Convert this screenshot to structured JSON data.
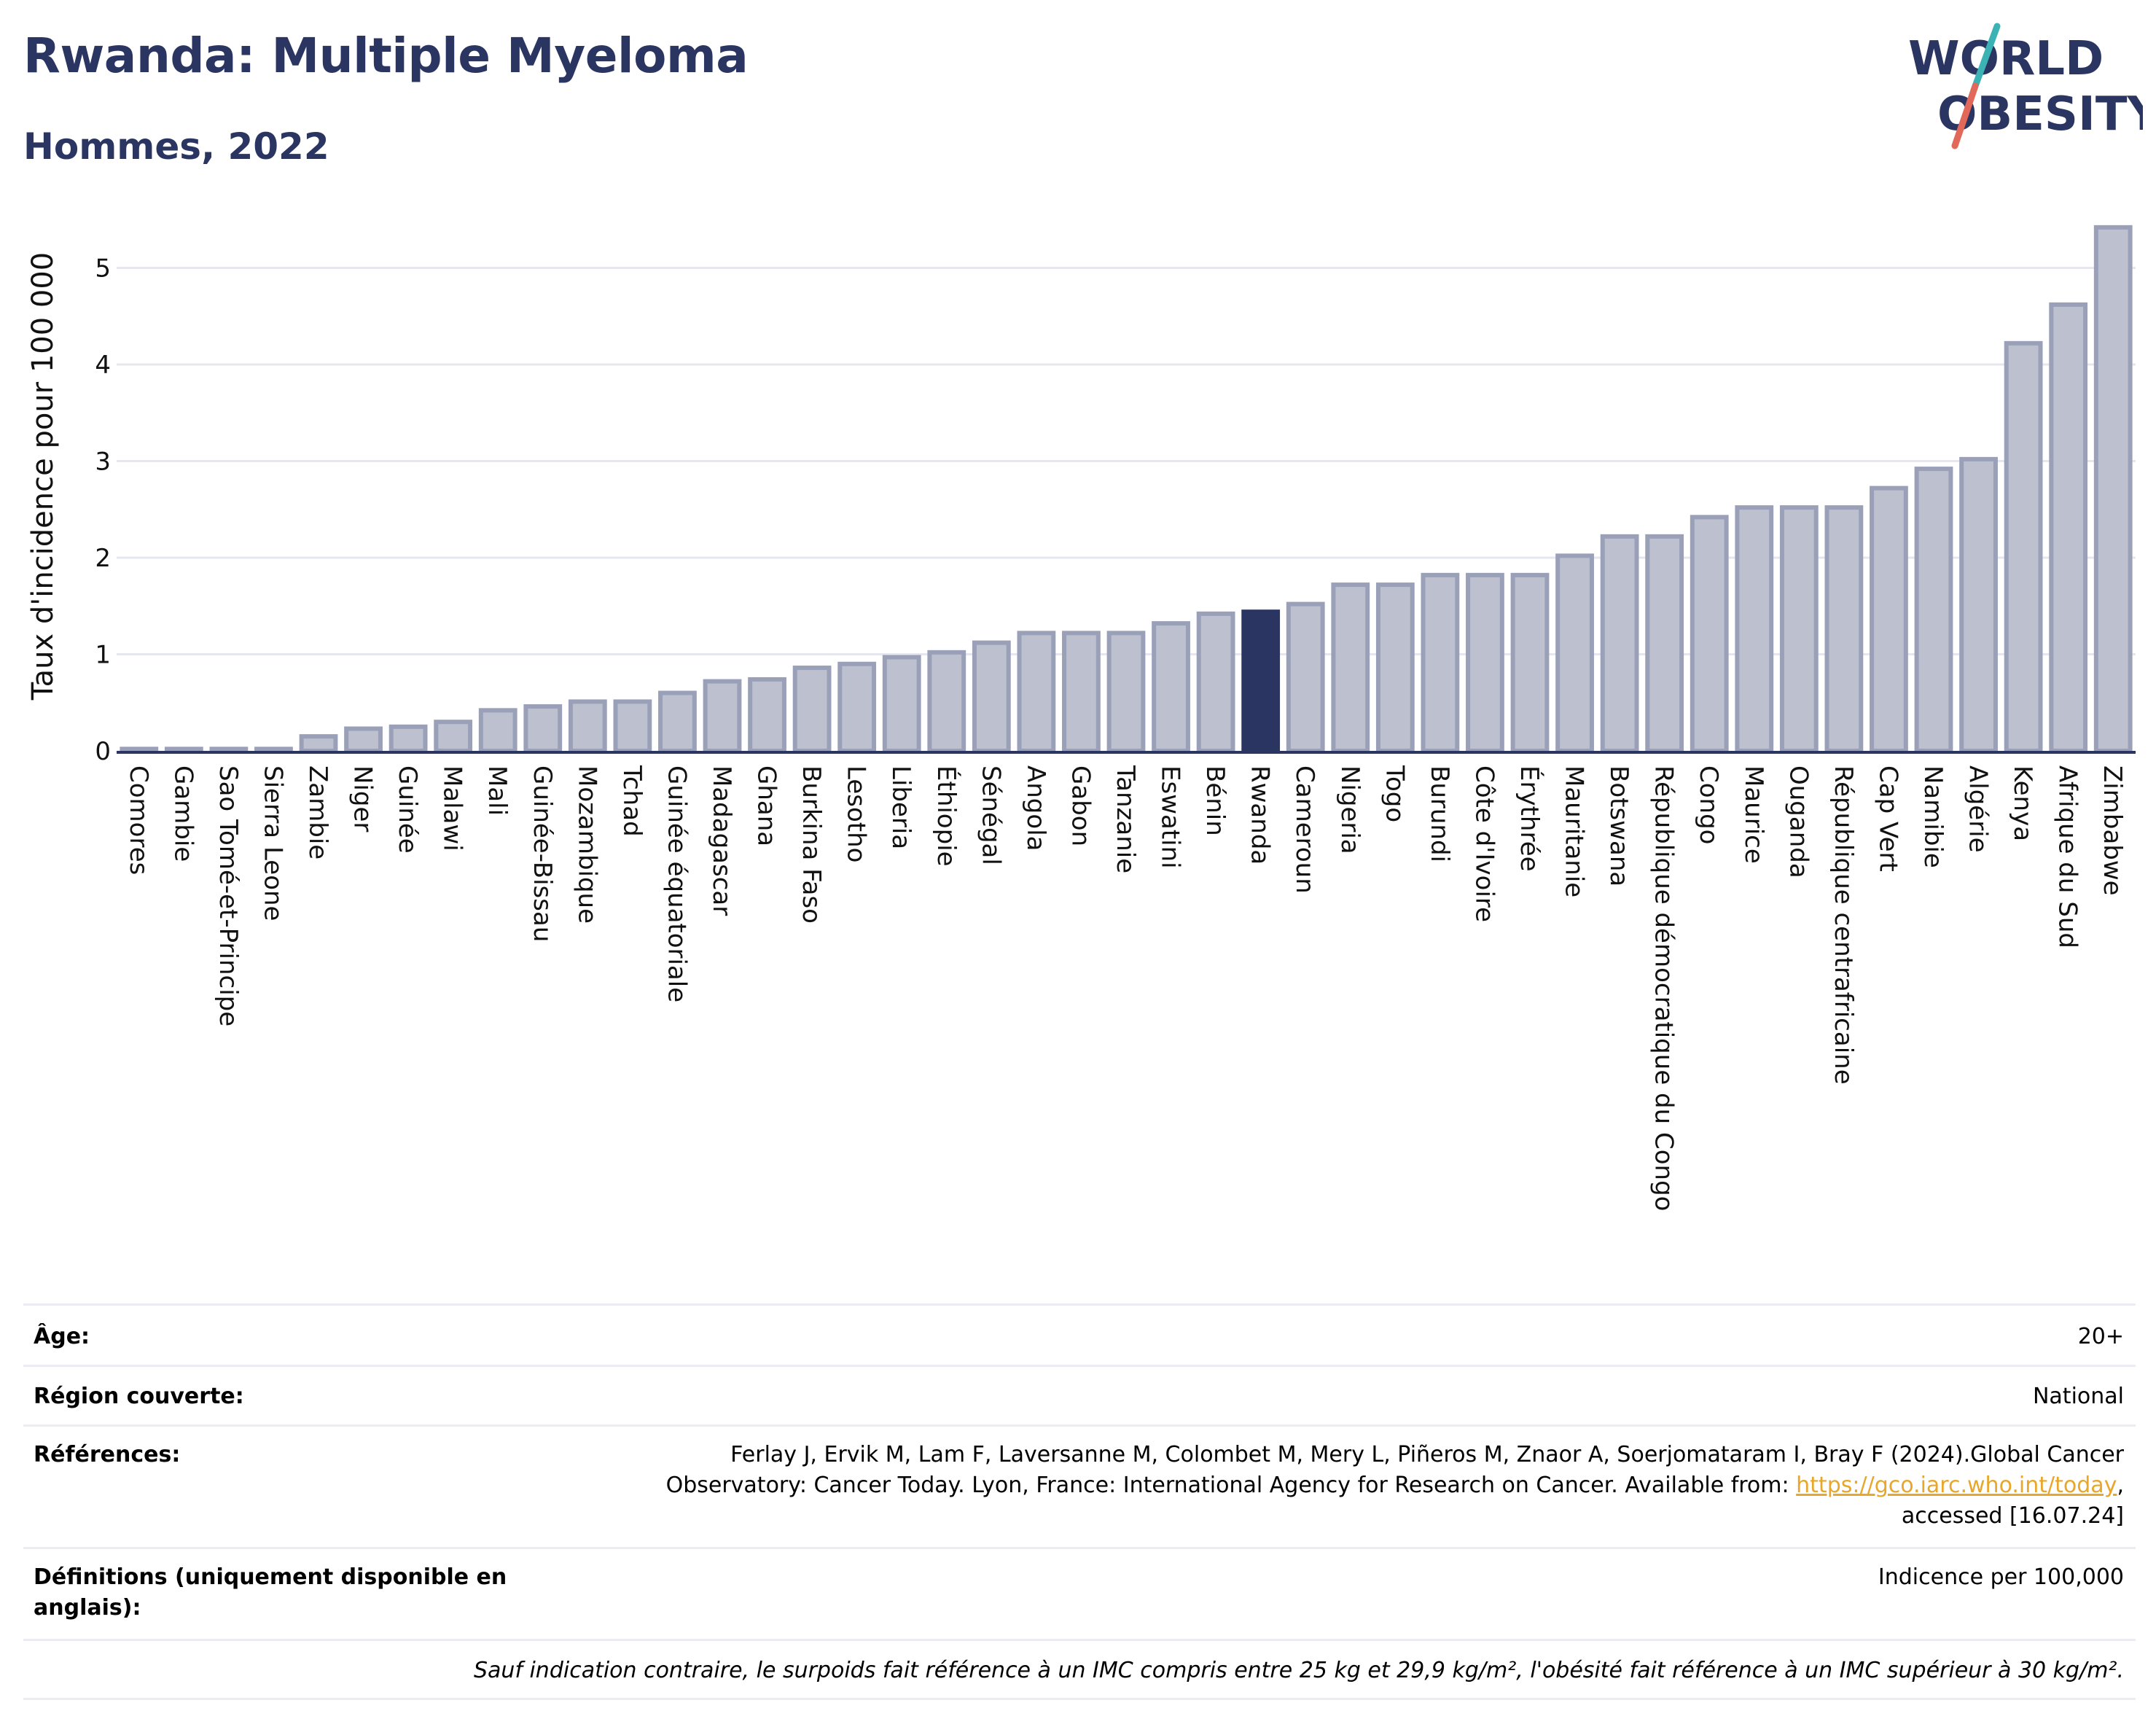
{
  "header": {
    "title": "Rwanda: Multiple Myeloma",
    "subtitle": "Hommes, 2022"
  },
  "logo": {
    "line1": "WORLD",
    "line2": "OBESITY",
    "colors": {
      "text": "#2a3561",
      "slash_top": "#3bb3b5",
      "slash_bottom": "#e2685a"
    }
  },
  "chart_data": {
    "type": "bar",
    "ylabel": "Taux d'incidence pour 100 000",
    "xlabel": "",
    "ylim": [
      0,
      5.5
    ],
    "yticks": [
      0,
      1,
      2,
      3,
      4,
      5
    ],
    "grid": true,
    "highlight": "Rwanda",
    "colors": {
      "bar": "#bcc0cf",
      "bar_border": "#9aa0b8",
      "highlight": "#2a3561",
      "axis": "#2a3561",
      "grid": "#e6e7ee"
    },
    "categories": [
      "Comores",
      "Gambie",
      "Sao Tomé-et-Principe",
      "Sierra Leone",
      "Zambie",
      "Niger",
      "Guinée",
      "Malawi",
      "Mali",
      "Guinée-Bissau",
      "Mozambique",
      "Tchad",
      "Guinée équatoriale",
      "Madagascar",
      "Ghana",
      "Burkina Faso",
      "Lesotho",
      "Liberia",
      "Éthiopie",
      "Sénégal",
      "Angola",
      "Gabon",
      "Tanzanie",
      "Eswatini",
      "Bénin",
      "Rwanda",
      "Cameroun",
      "Nigeria",
      "Togo",
      "Burundi",
      "Côte d'Ivoire",
      "Érythrée",
      "Mauritanie",
      "Botswana",
      "République démocratique du Congo",
      "Congo",
      "Maurice",
      "Ouganda",
      "République centrafricaine",
      "Cap Vert",
      "Namibie",
      "Algérie",
      "Kenya",
      "Afrique du Sud",
      "Zimbabwe"
    ],
    "values": [
      0.02,
      0.02,
      0.02,
      0.02,
      0.15,
      0.23,
      0.25,
      0.3,
      0.42,
      0.46,
      0.51,
      0.51,
      0.6,
      0.72,
      0.74,
      0.86,
      0.9,
      0.97,
      1.02,
      1.12,
      1.22,
      1.22,
      1.22,
      1.32,
      1.42,
      1.44,
      1.52,
      1.72,
      1.72,
      1.82,
      1.82,
      1.82,
      2.02,
      2.22,
      2.22,
      2.42,
      2.52,
      2.52,
      2.52,
      2.72,
      2.92,
      3.02,
      4.22,
      4.62,
      5.42
    ]
  },
  "meta": {
    "age_label": "Âge:",
    "age_value": "20+",
    "region_label": "Région couverte:",
    "region_value": "National",
    "refs_label": "Références:",
    "refs_line1": "Ferlay J, Ervik M, Lam F, Laversanne M, Colombet M, Mery L, Piñeros M, Znaor A, Soerjomataram I, Bray F (2024).Global Cancer",
    "refs_line2_text": "Observatory: Cancer Today. Lyon, France: International Agency for Research on Cancer. Available from: ",
    "refs_link": "https://gco.iarc.who.int/today",
    "refs_line2_end": ",",
    "refs_line3": "accessed [16.07.24]",
    "defs_label_line1": "Définitions (uniquement disponible en",
    "defs_label_line2": "anglais):",
    "defs_value": "Indicence per 100,000",
    "note": "Sauf indication contraire, le surpoids fait référence à un IMC compris entre 25 kg et 29,9 kg/m², l'obésité fait référence à un IMC supérieur à 30 kg/m²."
  }
}
